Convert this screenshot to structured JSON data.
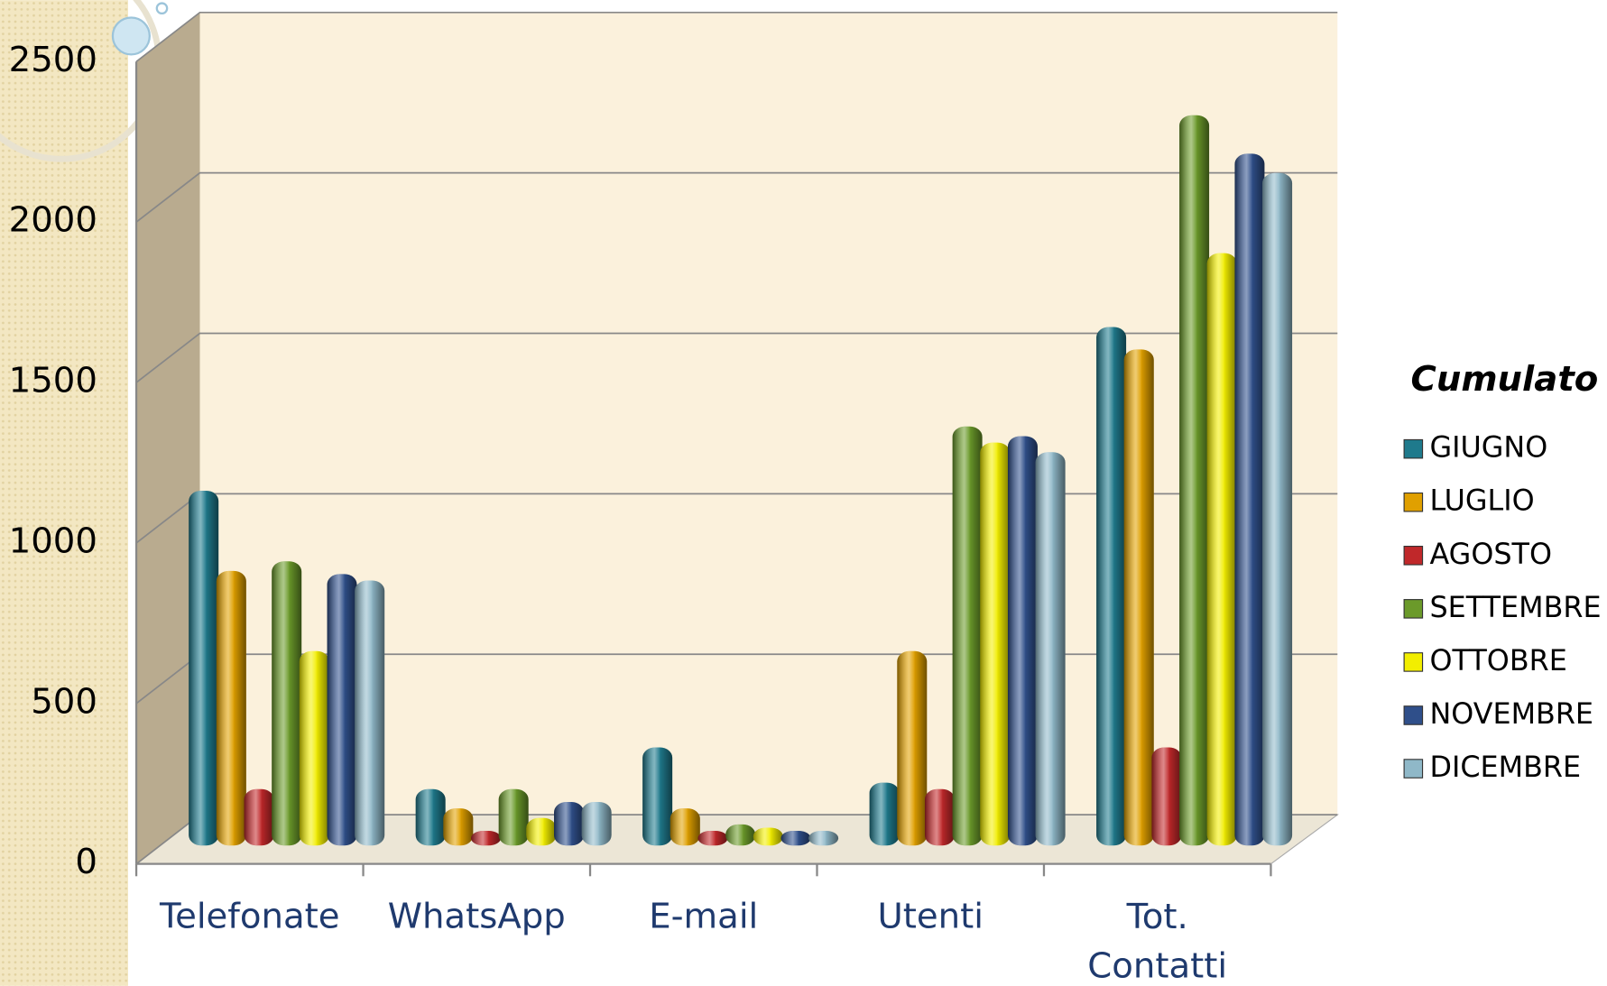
{
  "chart_data": {
    "type": "bar3d",
    "categories": [
      "Telefonate",
      "WhatsApp",
      "E-mail",
      "Utenti",
      "Tot. Contatti"
    ],
    "legend_title": "Cumulato",
    "series": [
      {
        "name": "GIUGNO",
        "color": "#1f7a8c",
        "values": [
          1080,
          150,
          280,
          170,
          1590
        ]
      },
      {
        "name": "LUGLIO",
        "color": "#e0a000",
        "values": [
          830,
          90,
          90,
          580,
          1520
        ]
      },
      {
        "name": "AGOSTO",
        "color": "#c0282a",
        "values": [
          150,
          20,
          20,
          150,
          280
        ]
      },
      {
        "name": "SETTEMBRE",
        "color": "#6b9a2a",
        "values": [
          860,
          150,
          40,
          1280,
          2250
        ]
      },
      {
        "name": "OTTOBRE",
        "color": "#f2ee00",
        "values": [
          580,
          60,
          30,
          1230,
          1820
        ]
      },
      {
        "name": "NOVEMBRE",
        "color": "#2f4f8a",
        "values": [
          820,
          110,
          20,
          1250,
          2130
        ]
      },
      {
        "name": "DICEMBRE",
        "color": "#8fb8c8",
        "values": [
          800,
          110,
          20,
          1200,
          2070
        ]
      }
    ],
    "ylim": [
      0,
      2500
    ],
    "yticks": [
      0,
      500,
      1000,
      1500,
      2000,
      2500
    ],
    "grid": true,
    "legend": "right"
  }
}
